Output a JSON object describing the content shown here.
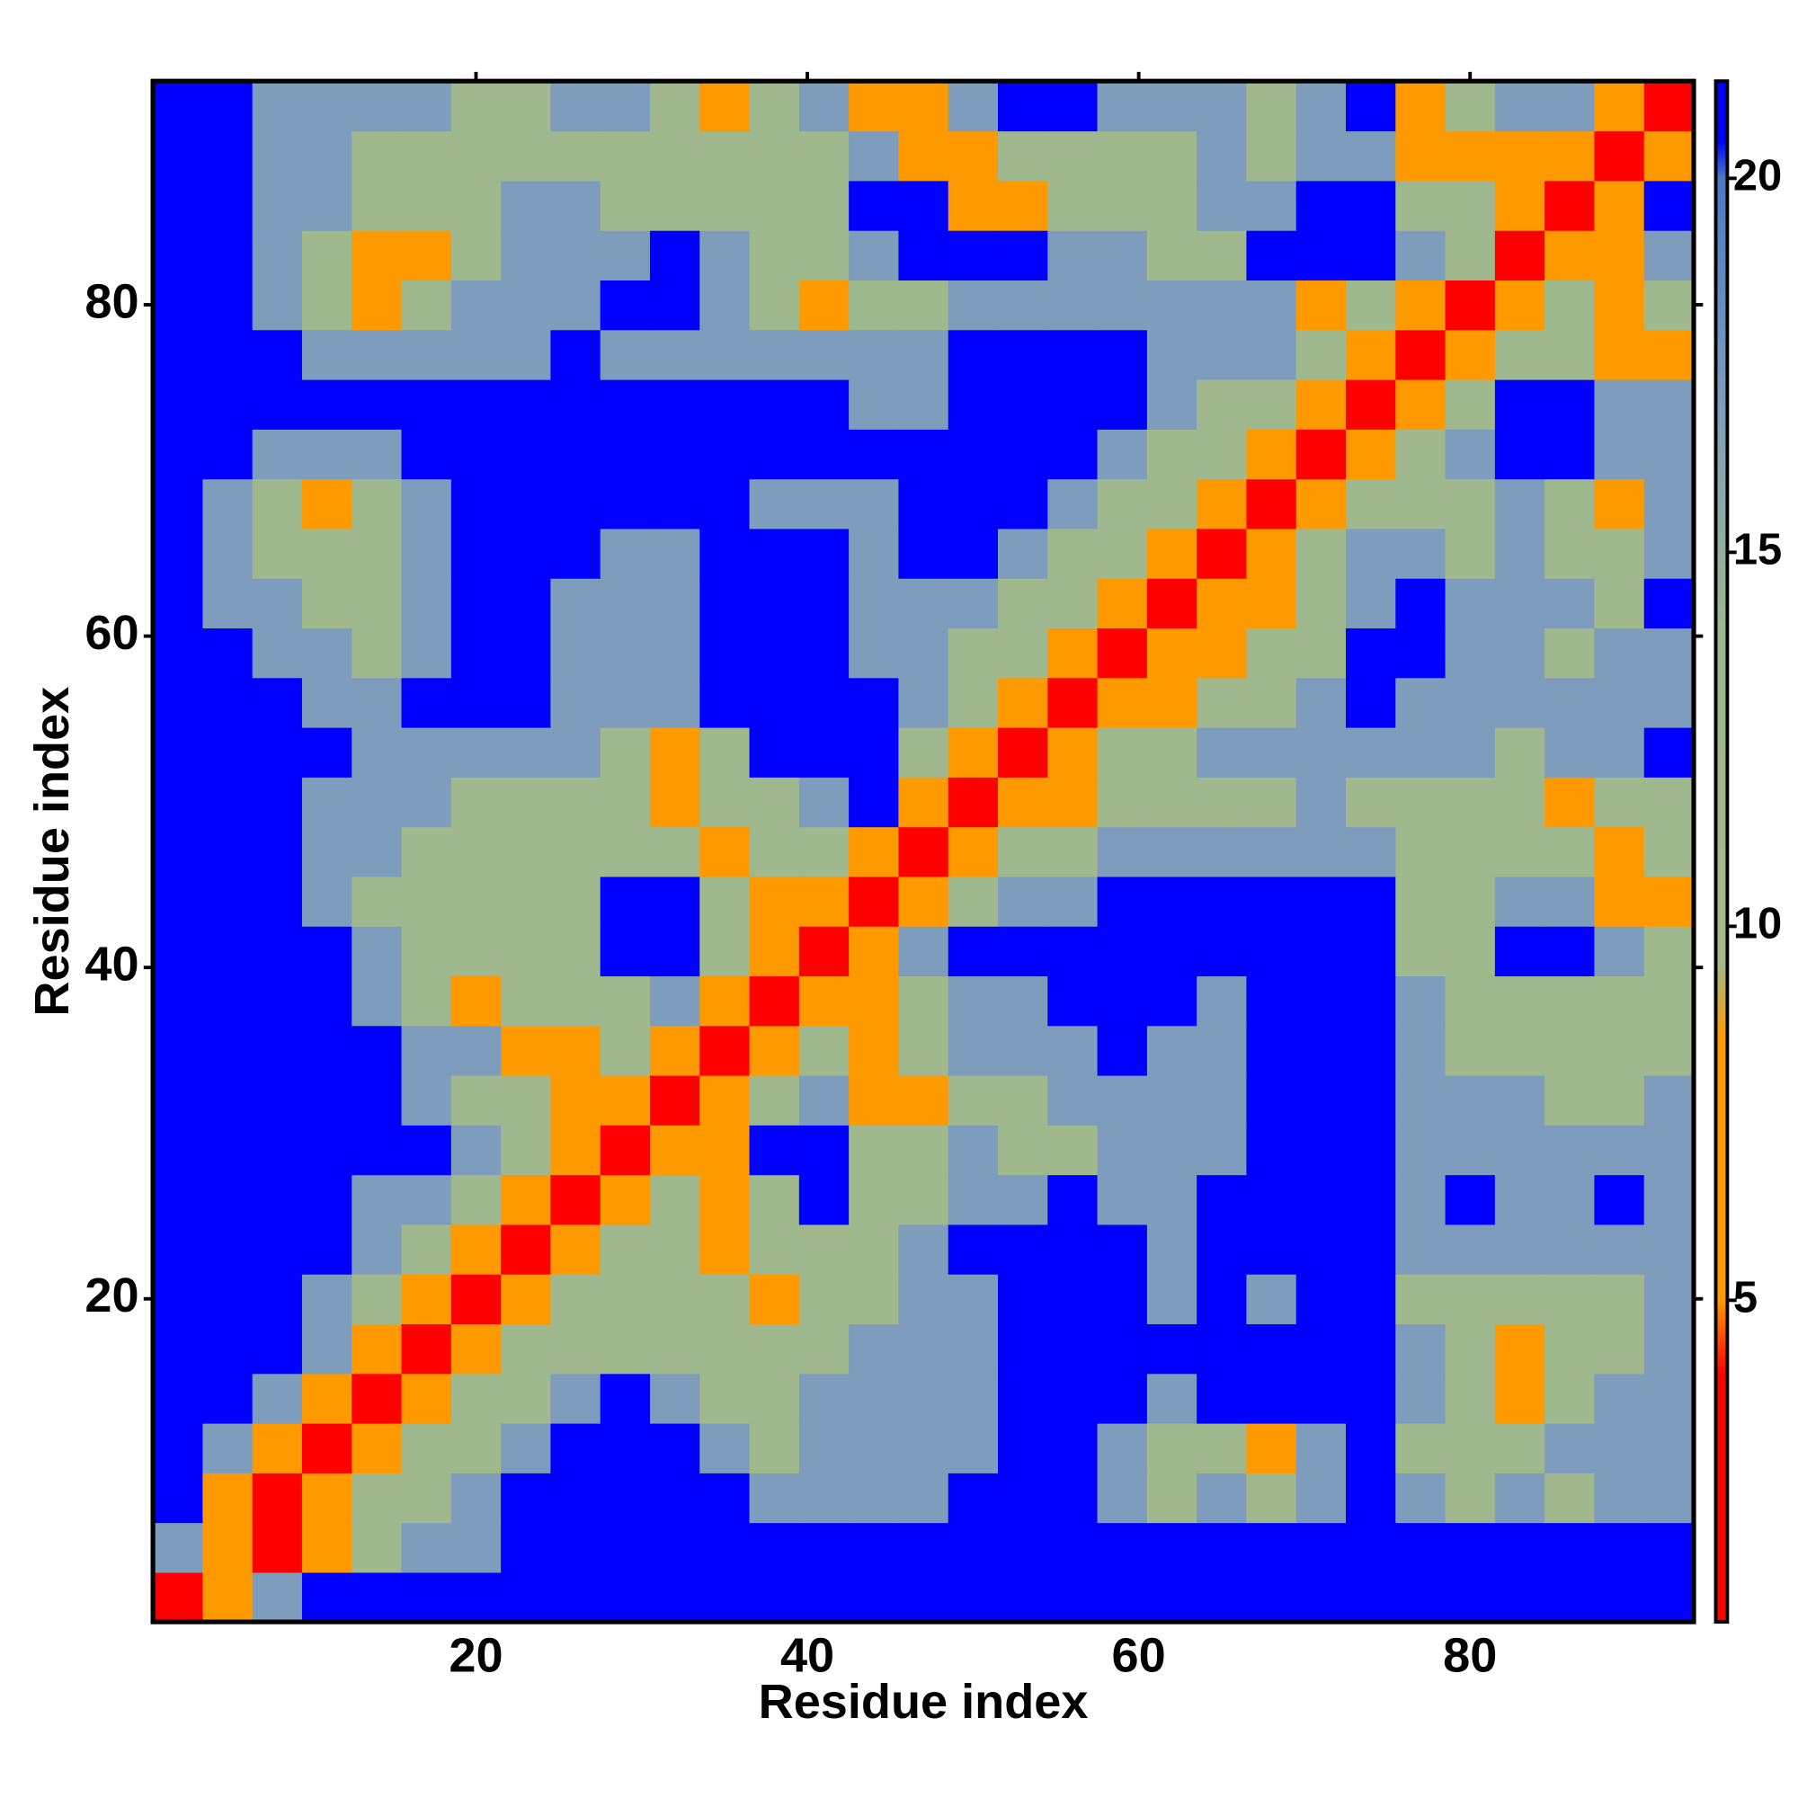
{
  "chart_data": {
    "type": "heatmap",
    "xlabel": "Residue index",
    "ylabel": "Residue index",
    "xlim": [
      0.5,
      93.5
    ],
    "ylim": [
      0.5,
      93.5
    ],
    "xticks": [
      20,
      40,
      60,
      80
    ],
    "yticks": [
      20,
      40,
      60,
      80
    ],
    "xbins": [
      0.5,
      3.5,
      6.5,
      9.5,
      12.5,
      15.5,
      18.5,
      21.5,
      24.5,
      27.5,
      30.5,
      33.5,
      36.5,
      39.5,
      42.5,
      45.5,
      48.5,
      51.5,
      54.5,
      57.5,
      60.5,
      63.5,
      66.5,
      69.5,
      72.5,
      75.5,
      78.5,
      81.5,
      84.5,
      87.5,
      90.5,
      93.5
    ],
    "ybins": [
      0.5,
      3.5,
      6.5,
      9.5,
      12.5,
      15.5,
      18.5,
      21.5,
      24.5,
      27.5,
      30.5,
      33.5,
      36.5,
      39.5,
      42.5,
      45.5,
      48.5,
      51.5,
      54.5,
      57.5,
      60.5,
      63.5,
      66.5,
      69.5,
      72.5,
      75.5,
      78.5,
      81.5,
      84.5,
      87.5,
      90.5,
      93.5
    ],
    "zlim": [
      0.7,
      21.3
    ],
    "zticks": [
      5,
      10,
      15,
      20
    ],
    "colorscale": [
      [
        0.7,
        "#ff0000"
      ],
      [
        4,
        "#ff0000"
      ],
      [
        5,
        "#ff9900"
      ],
      [
        8.5,
        "#ff9900"
      ],
      [
        9.5,
        "#a3b98a"
      ],
      [
        14,
        "#9cb88f"
      ],
      [
        17,
        "#7e9dbc"
      ],
      [
        20,
        "#4f78c4"
      ],
      [
        20.5,
        "#0000ff"
      ],
      [
        21.3,
        "#0000ff"
      ]
    ],
    "z": [
      [
        2,
        6,
        17,
        21,
        21,
        21,
        21,
        21,
        21,
        21,
        21,
        21,
        21,
        21,
        21,
        21,
        21,
        21,
        21,
        21,
        21,
        21,
        21,
        21,
        21,
        21,
        21,
        21,
        21,
        21,
        21
      ],
      [
        17,
        6,
        2,
        6,
        12,
        17,
        17,
        21,
        21,
        21,
        21,
        21,
        21,
        21,
        21,
        21,
        21,
        21,
        21,
        21,
        21,
        21,
        21,
        21,
        21,
        21,
        21,
        21,
        21,
        21,
        21
      ],
      [
        21,
        6,
        2,
        6,
        12,
        12,
        17,
        21,
        21,
        21,
        21,
        21,
        17,
        17,
        17,
        17,
        21,
        21,
        21,
        17,
        12,
        17,
        12,
        17,
        21,
        17,
        12,
        17,
        12,
        17,
        17
      ],
      [
        21,
        17,
        6,
        2,
        6,
        12,
        12,
        17,
        21,
        21,
        21,
        17,
        12,
        17,
        17,
        17,
        17,
        21,
        21,
        17,
        12,
        12,
        6,
        17,
        21,
        12,
        12,
        12,
        17,
        17,
        17
      ],
      [
        21,
        21,
        17,
        6,
        2,
        6,
        12,
        12,
        17,
        21,
        17,
        12,
        12,
        17,
        17,
        17,
        17,
        21,
        21,
        21,
        17,
        21,
        21,
        21,
        21,
        17,
        12,
        6,
        12,
        17,
        17
      ],
      [
        21,
        21,
        21,
        17,
        6,
        2,
        6,
        12,
        12,
        12,
        12,
        12,
        12,
        12,
        17,
        17,
        17,
        21,
        21,
        21,
        21,
        21,
        21,
        21,
        21,
        17,
        12,
        6,
        12,
        12,
        17
      ],
      [
        21,
        21,
        21,
        17,
        12,
        6,
        2,
        6,
        12,
        12,
        12,
        12,
        6,
        12,
        12,
        17,
        17,
        21,
        21,
        21,
        17,
        21,
        17,
        21,
        21,
        12,
        12,
        12,
        12,
        12,
        17
      ],
      [
        21,
        21,
        21,
        21,
        17,
        12,
        6,
        2,
        6,
        12,
        12,
        6,
        12,
        12,
        12,
        17,
        21,
        21,
        21,
        21,
        17,
        21,
        21,
        21,
        21,
        17,
        17,
        17,
        17,
        17,
        17
      ],
      [
        21,
        21,
        21,
        21,
        17,
        17,
        12,
        6,
        2,
        6,
        12,
        6,
        12,
        21,
        12,
        12,
        17,
        17,
        21,
        17,
        17,
        21,
        21,
        21,
        21,
        17,
        21,
        17,
        17,
        21,
        17
      ],
      [
        21,
        21,
        21,
        21,
        21,
        21,
        17,
        12,
        6,
        2,
        6,
        6,
        21,
        21,
        12,
        12,
        17,
        12,
        12,
        17,
        17,
        17,
        21,
        21,
        21,
        17,
        17,
        17,
        17,
        17,
        17
      ],
      [
        21,
        21,
        21,
        21,
        21,
        17,
        12,
        12,
        6,
        6,
        2,
        6,
        12,
        17,
        6,
        6,
        12,
        12,
        17,
        17,
        17,
        17,
        21,
        21,
        21,
        17,
        17,
        17,
        12,
        12,
        17
      ],
      [
        21,
        21,
        21,
        21,
        21,
        17,
        17,
        6,
        6,
        12,
        6,
        2,
        6,
        12,
        6,
        12,
        17,
        17,
        17,
        21,
        17,
        17,
        21,
        21,
        21,
        17,
        12,
        12,
        12,
        12,
        12
      ],
      [
        21,
        21,
        21,
        21,
        17,
        12,
        6,
        12,
        12,
        12,
        17,
        6,
        2,
        6,
        6,
        12,
        17,
        17,
        21,
        21,
        21,
        17,
        21,
        21,
        21,
        17,
        12,
        12,
        12,
        12,
        12
      ],
      [
        21,
        21,
        21,
        21,
        17,
        12,
        12,
        12,
        12,
        21,
        21,
        12,
        6,
        2,
        6,
        17,
        21,
        21,
        21,
        21,
        21,
        21,
        21,
        21,
        21,
        12,
        12,
        21,
        21,
        17,
        12
      ],
      [
        21,
        21,
        21,
        17,
        12,
        12,
        12,
        12,
        12,
        21,
        21,
        12,
        6,
        6,
        2,
        6,
        12,
        17,
        17,
        21,
        21,
        21,
        21,
        21,
        21,
        12,
        12,
        17,
        17,
        6,
        6
      ],
      [
        21,
        21,
        21,
        17,
        17,
        12,
        12,
        12,
        12,
        12,
        12,
        6,
        12,
        12,
        6,
        2,
        6,
        12,
        12,
        17,
        17,
        17,
        17,
        17,
        17,
        12,
        12,
        12,
        12,
        6,
        12
      ],
      [
        21,
        21,
        21,
        17,
        17,
        17,
        12,
        12,
        12,
        12,
        6,
        12,
        12,
        17,
        21,
        6,
        2,
        6,
        6,
        12,
        12,
        12,
        12,
        17,
        12,
        12,
        12,
        12,
        6,
        12,
        12
      ],
      [
        21,
        21,
        21,
        21,
        17,
        17,
        17,
        17,
        17,
        12,
        6,
        12,
        21,
        21,
        21,
        12,
        6,
        2,
        6,
        12,
        12,
        17,
        17,
        17,
        17,
        17,
        17,
        12,
        17,
        17,
        21
      ],
      [
        21,
        21,
        21,
        17,
        17,
        21,
        21,
        21,
        17,
        17,
        17,
        21,
        21,
        21,
        21,
        17,
        12,
        6,
        2,
        6,
        6,
        12,
        12,
        17,
        21,
        17,
        17,
        17,
        17,
        17,
        17
      ],
      [
        21,
        21,
        17,
        17,
        12,
        17,
        21,
        21,
        17,
        17,
        17,
        21,
        21,
        21,
        17,
        17,
        12,
        12,
        6,
        2,
        6,
        6,
        12,
        12,
        21,
        21,
        17,
        17,
        12,
        17,
        17
      ],
      [
        21,
        17,
        17,
        12,
        12,
        17,
        21,
        21,
        17,
        17,
        17,
        21,
        21,
        21,
        17,
        17,
        17,
        12,
        12,
        6,
        2,
        6,
        6,
        12,
        17,
        21,
        17,
        17,
        17,
        12,
        21
      ],
      [
        21,
        17,
        12,
        12,
        12,
        17,
        21,
        21,
        21,
        17,
        17,
        21,
        21,
        21,
        17,
        21,
        21,
        17,
        12,
        12,
        6,
        2,
        6,
        12,
        17,
        17,
        12,
        17,
        12,
        12,
        17
      ],
      [
        21,
        17,
        12,
        6,
        12,
        17,
        21,
        21,
        21,
        21,
        21,
        21,
        17,
        17,
        17,
        21,
        21,
        21,
        17,
        12,
        12,
        6,
        2,
        6,
        12,
        12,
        12,
        17,
        12,
        6,
        17
      ],
      [
        21,
        21,
        17,
        17,
        17,
        21,
        21,
        21,
        21,
        21,
        21,
        21,
        21,
        21,
        21,
        21,
        21,
        21,
        21,
        17,
        12,
        12,
        6,
        2,
        6,
        12,
        17,
        21,
        21,
        17,
        17
      ],
      [
        21,
        21,
        21,
        21,
        21,
        21,
        21,
        21,
        21,
        21,
        21,
        21,
        21,
        21,
        17,
        17,
        21,
        21,
        21,
        21,
        17,
        12,
        12,
        6,
        2,
        6,
        12,
        21,
        21,
        17,
        17
      ],
      [
        21,
        21,
        21,
        17,
        17,
        17,
        17,
        17,
        21,
        17,
        17,
        17,
        17,
        17,
        17,
        17,
        21,
        21,
        21,
        21,
        17,
        17,
        17,
        12,
        6,
        2,
        6,
        12,
        12,
        6,
        6
      ],
      [
        21,
        21,
        17,
        12,
        6,
        12,
        17,
        17,
        17,
        21,
        21,
        17,
        12,
        6,
        12,
        12,
        17,
        17,
        17,
        17,
        17,
        17,
        17,
        6,
        12,
        6,
        2,
        6,
        12,
        6,
        12
      ],
      [
        21,
        21,
        17,
        12,
        6,
        6,
        12,
        17,
        17,
        17,
        21,
        17,
        12,
        12,
        17,
        21,
        21,
        21,
        17,
        17,
        12,
        12,
        21,
        21,
        21,
        17,
        12,
        2,
        6,
        6,
        17
      ],
      [
        21,
        21,
        17,
        17,
        12,
        12,
        12,
        17,
        17,
        12,
        12,
        12,
        12,
        12,
        21,
        21,
        6,
        6,
        12,
        12,
        12,
        17,
        17,
        21,
        21,
        12,
        12,
        6,
        2,
        6,
        21
      ],
      [
        21,
        21,
        17,
        17,
        12,
        12,
        12,
        12,
        12,
        12,
        12,
        12,
        12,
        12,
        17,
        6,
        6,
        12,
        12,
        12,
        12,
        17,
        12,
        17,
        17,
        6,
        6,
        6,
        6,
        2,
        6
      ],
      [
        21,
        21,
        17,
        17,
        17,
        17,
        12,
        12,
        17,
        17,
        12,
        6,
        12,
        17,
        6,
        6,
        17,
        21,
        21,
        17,
        17,
        17,
        12,
        17,
        21,
        6,
        12,
        17,
        17,
        6,
        2
      ]
    ]
  }
}
